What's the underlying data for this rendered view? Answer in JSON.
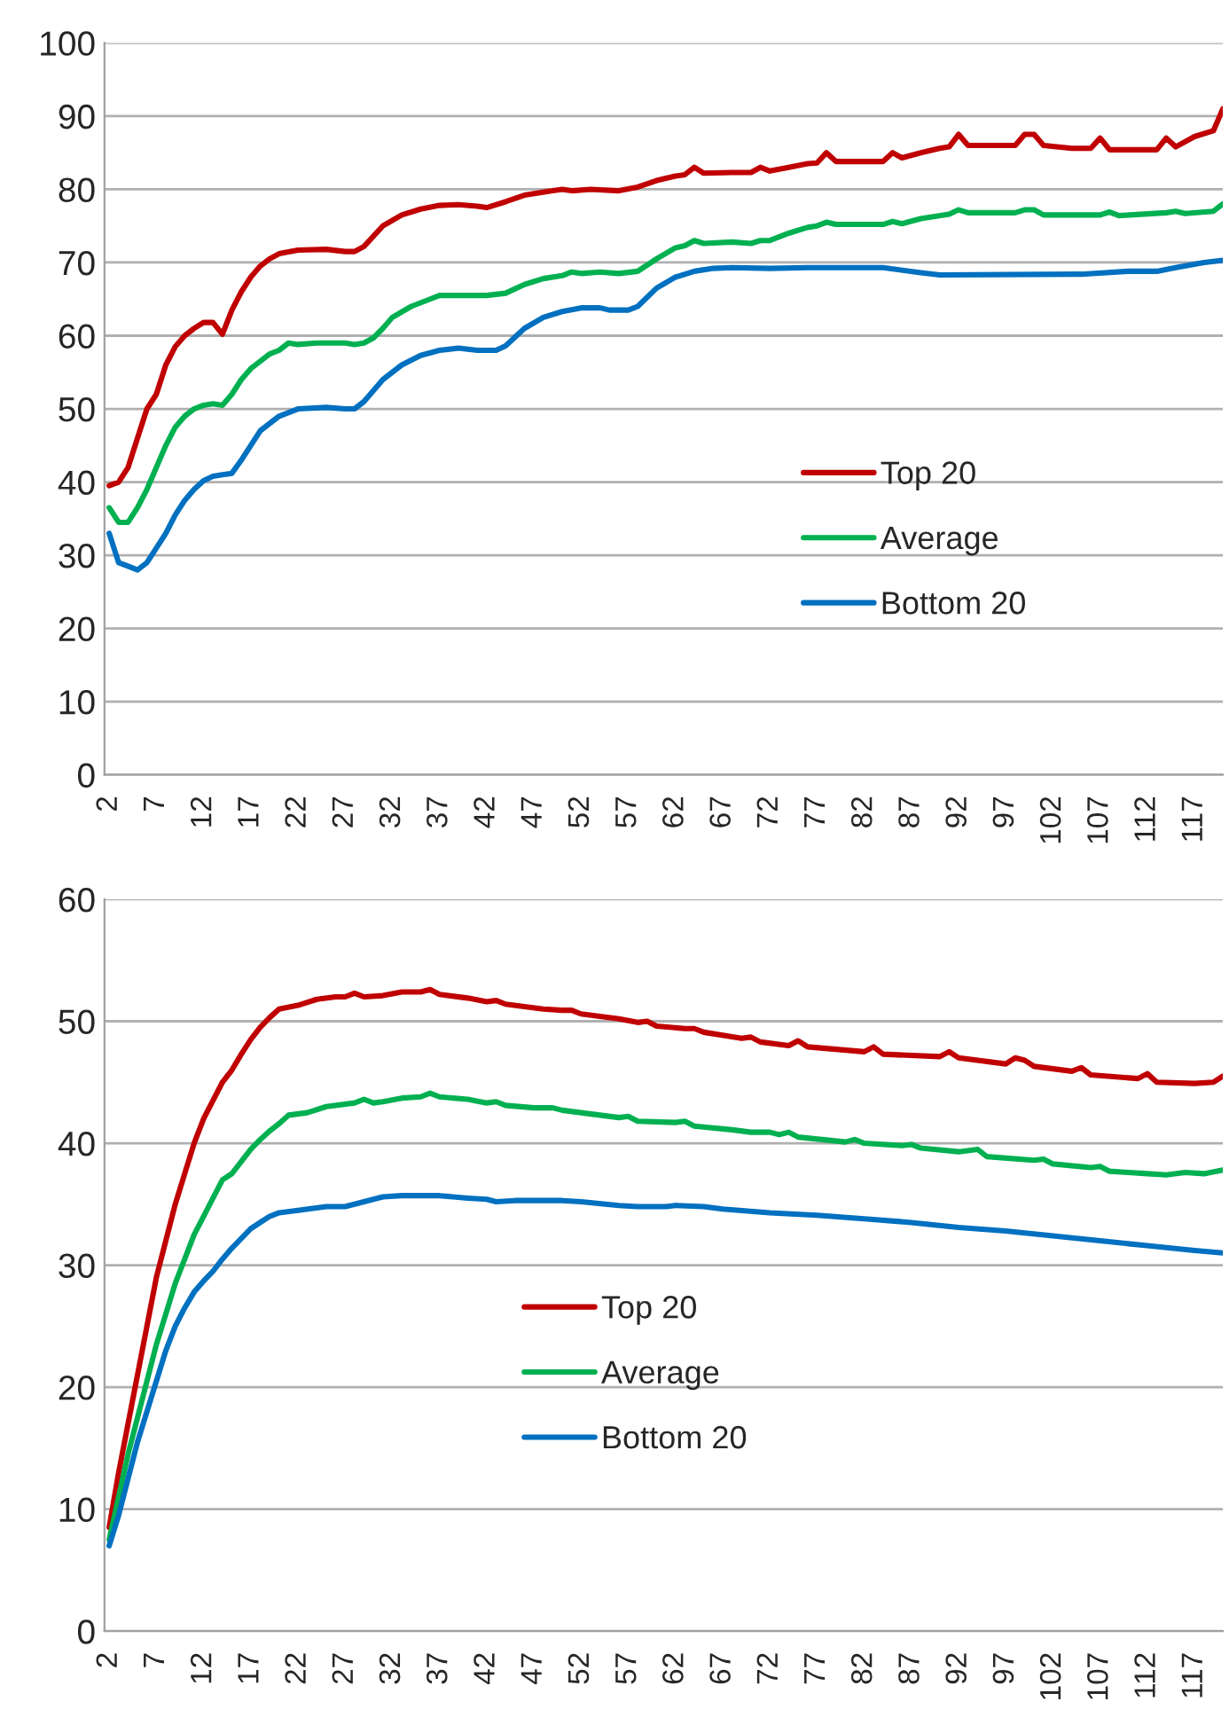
{
  "chart_data": [
    {
      "type": "line",
      "xlim": [
        1.5,
        120
      ],
      "xticks": [
        2,
        7,
        12,
        17,
        22,
        27,
        32,
        37,
        42,
        47,
        52,
        57,
        62,
        67,
        72,
        77,
        82,
        87,
        92,
        97,
        102,
        107,
        112,
        117
      ],
      "ylim": [
        0,
        100
      ],
      "yticks": [
        0,
        10,
        20,
        30,
        40,
        50,
        60,
        70,
        80,
        90,
        100
      ],
      "grid": "y",
      "legend": "right",
      "marker": "none",
      "line_style": "solid",
      "series": [
        {
          "name": "Top 20",
          "color": "#c00000",
          "x": [
            2,
            3,
            4,
            5,
            6,
            7,
            8,
            9,
            10,
            11,
            12,
            13,
            14,
            15,
            16,
            17,
            18,
            19,
            20,
            22,
            25,
            27,
            28,
            29,
            31,
            33,
            35,
            37,
            39,
            41,
            42,
            44,
            46,
            49,
            50,
            51,
            53,
            56,
            58,
            60,
            62,
            63,
            64,
            65,
            68,
            70,
            71,
            72,
            74,
            76,
            77,
            78,
            79,
            84,
            85,
            86,
            88,
            90,
            91,
            92,
            93,
            98,
            99,
            100,
            101,
            104,
            106,
            107,
            108,
            113,
            114,
            115,
            117,
            119,
            120
          ],
          "values": [
            39.5,
            40,
            42,
            46,
            50,
            52,
            56,
            58.5,
            60,
            61,
            61.8,
            61.8,
            60.2,
            63.5,
            66,
            68,
            69.5,
            70.5,
            71.2,
            71.7,
            71.8,
            71.5,
            71.5,
            72.2,
            75,
            76.5,
            77.3,
            77.8,
            77.9,
            77.7,
            77.5,
            78.3,
            79.2,
            79.8,
            80,
            79.8,
            80,
            79.8,
            80.3,
            81.2,
            81.8,
            82,
            83,
            82.2,
            82.3,
            82.3,
            83,
            82.5,
            83,
            83.5,
            83.6,
            85,
            83.8,
            83.8,
            85,
            84.3,
            85,
            85.6,
            85.8,
            87.5,
            86,
            86,
            87.5,
            87.5,
            86,
            85.6,
            85.6,
            87,
            85.4,
            85.4,
            87,
            85.8,
            87.2,
            88,
            91
          ]
        },
        {
          "name": "Average",
          "color": "#00b050",
          "x": [
            2,
            3,
            4,
            5,
            6,
            7,
            8,
            9,
            10,
            11,
            12,
            13,
            14,
            15,
            16,
            17,
            18,
            19,
            20,
            21,
            22,
            24,
            27,
            28,
            29,
            30,
            31,
            32,
            34,
            36,
            37,
            42,
            44,
            46,
            48,
            50,
            51,
            52,
            54,
            56,
            58,
            60,
            62,
            63,
            64,
            65,
            68,
            70,
            71,
            72,
            74,
            76,
            77,
            78,
            79,
            84,
            85,
            86,
            88,
            91,
            92,
            93,
            98,
            99,
            100,
            101,
            107,
            108,
            109,
            114,
            115,
            116,
            119,
            120
          ],
          "values": [
            36.5,
            34.5,
            34.5,
            36.5,
            39,
            42,
            45,
            47.5,
            49,
            50,
            50.5,
            50.7,
            50.5,
            52,
            54,
            55.5,
            56.5,
            57.5,
            58,
            59,
            58.8,
            59,
            59,
            58.8,
            59,
            59.7,
            61,
            62.5,
            64,
            65,
            65.5,
            65.5,
            65.8,
            67,
            67.8,
            68.2,
            68.7,
            68.5,
            68.7,
            68.5,
            68.8,
            70.5,
            72,
            72.3,
            73,
            72.6,
            72.8,
            72.6,
            73,
            73,
            74,
            74.8,
            75,
            75.5,
            75.2,
            75.2,
            75.6,
            75.3,
            76,
            76.6,
            77.2,
            76.8,
            76.8,
            77.2,
            77.2,
            76.5,
            76.5,
            76.9,
            76.4,
            76.8,
            77,
            76.7,
            77,
            78
          ]
        },
        {
          "name": "Bottom 20",
          "color": "#0070c0",
          "x": [
            2,
            3,
            4,
            5,
            6,
            7,
            8,
            9,
            10,
            11,
            12,
            13,
            14,
            15,
            16,
            17,
            18,
            19,
            20,
            22,
            25,
            27,
            28,
            29,
            31,
            33,
            35,
            37,
            39,
            41,
            43,
            44,
            46,
            48,
            50,
            52,
            54,
            55,
            57,
            58,
            60,
            62,
            64,
            66,
            68,
            72,
            76,
            84,
            88,
            90,
            105,
            110,
            113,
            115,
            118,
            120
          ],
          "values": [
            33,
            29,
            28.5,
            28,
            29,
            31,
            33,
            35.5,
            37.5,
            39,
            40.2,
            40.8,
            41,
            41.2,
            43,
            45,
            47,
            48,
            49,
            50,
            50.2,
            50,
            50,
            51,
            54,
            56,
            57.3,
            58,
            58.3,
            58,
            58,
            58.6,
            61,
            62.5,
            63.3,
            63.8,
            63.8,
            63.5,
            63.5,
            64,
            66.5,
            68,
            68.8,
            69.2,
            69.3,
            69.2,
            69.3,
            69.3,
            68.6,
            68.3,
            68.4,
            68.8,
            68.8,
            69.3,
            70,
            70.3
          ]
        }
      ]
    },
    {
      "type": "line",
      "xlim": [
        1.5,
        120
      ],
      "xticks": [
        2,
        7,
        12,
        17,
        22,
        27,
        32,
        37,
        42,
        47,
        52,
        57,
        62,
        67,
        72,
        77,
        82,
        87,
        92,
        97,
        102,
        107,
        112,
        117
      ],
      "ylim": [
        0,
        60
      ],
      "yticks": [
        0,
        10,
        20,
        30,
        40,
        50,
        60
      ],
      "grid": "y",
      "legend": "center",
      "marker": "none",
      "line_style": "solid",
      "series": [
        {
          "name": "Top 20",
          "color": "#c00000",
          "x": [
            2,
            3,
            4,
            5,
            6,
            7,
            8,
            9,
            10,
            11,
            12,
            13,
            14,
            15,
            16,
            17,
            18,
            19,
            20,
            22,
            24,
            26,
            27,
            28,
            29,
            31,
            33,
            35,
            36,
            37,
            40,
            42,
            43,
            44,
            48,
            50,
            51,
            52,
            56,
            58,
            59,
            60,
            63,
            64,
            65,
            69,
            70,
            71,
            74,
            75,
            76,
            82,
            83,
            84,
            90,
            91,
            92,
            97,
            98,
            99,
            100,
            104,
            105,
            106,
            111,
            112,
            113,
            117,
            119,
            120
          ],
          "values": [
            8.5,
            13,
            17,
            21,
            25,
            29,
            32,
            35,
            37.5,
            40,
            42,
            43.5,
            45,
            46,
            47.3,
            48.5,
            49.5,
            50.3,
            51,
            51.3,
            51.8,
            52,
            52,
            52.3,
            52,
            52.1,
            52.4,
            52.4,
            52.6,
            52.2,
            51.9,
            51.6,
            51.7,
            51.4,
            51,
            50.9,
            50.9,
            50.6,
            50.2,
            49.9,
            50,
            49.6,
            49.4,
            49.4,
            49.1,
            48.6,
            48.7,
            48.3,
            48,
            48.4,
            47.9,
            47.5,
            47.9,
            47.3,
            47.1,
            47.5,
            47,
            46.5,
            47,
            46.8,
            46.3,
            45.9,
            46.2,
            45.6,
            45.3,
            45.7,
            45,
            44.9,
            45,
            45.5
          ]
        },
        {
          "name": "Average",
          "color": "#00b050",
          "x": [
            2,
            3,
            4,
            5,
            6,
            7,
            8,
            9,
            10,
            11,
            12,
            13,
            14,
            15,
            16,
            17,
            18,
            19,
            20,
            21,
            23,
            25,
            28,
            29,
            30,
            31,
            33,
            35,
            36,
            37,
            40,
            42,
            43,
            44,
            47,
            49,
            50,
            54,
            56,
            57,
            58,
            62,
            63,
            64,
            68,
            70,
            72,
            73,
            74,
            75,
            80,
            81,
            82,
            86,
            87,
            88,
            92,
            94,
            95,
            100,
            101,
            102,
            106,
            107,
            108,
            110,
            112,
            114,
            116,
            118,
            120
          ],
          "values": [
            7.5,
            11,
            14.5,
            17.5,
            20.5,
            23.5,
            26,
            28.5,
            30.5,
            32.5,
            34,
            35.5,
            37,
            37.5,
            38.5,
            39.5,
            40.3,
            41,
            41.6,
            42.3,
            42.5,
            43,
            43.3,
            43.6,
            43.3,
            43.4,
            43.7,
            43.8,
            44.1,
            43.8,
            43.6,
            43.3,
            43.4,
            43.1,
            42.9,
            42.9,
            42.7,
            42.3,
            42.1,
            42.2,
            41.8,
            41.7,
            41.8,
            41.4,
            41.1,
            40.9,
            40.9,
            40.7,
            40.9,
            40.5,
            40.1,
            40.3,
            40,
            39.8,
            39.9,
            39.6,
            39.3,
            39.5,
            38.9,
            38.6,
            38.7,
            38.3,
            38,
            38.1,
            37.7,
            37.6,
            37.5,
            37.4,
            37.6,
            37.5,
            37.8
          ]
        },
        {
          "name": "Bottom 20",
          "color": "#0070c0",
          "x": [
            2,
            3,
            4,
            5,
            6,
            7,
            8,
            9,
            10,
            11,
            12,
            13,
            14,
            15,
            16,
            17,
            18,
            19,
            20,
            22,
            25,
            27,
            29,
            31,
            33,
            37,
            40,
            42,
            43,
            45,
            50,
            52,
            56,
            58,
            61,
            62,
            65,
            67,
            72,
            77,
            82,
            87,
            92,
            97,
            102,
            107,
            112,
            117,
            120
          ],
          "values": [
            7,
            9.5,
            12.5,
            15.5,
            18,
            20.5,
            23,
            25,
            26.5,
            27.8,
            28.7,
            29.5,
            30.5,
            31.4,
            32.2,
            33,
            33.5,
            34,
            34.3,
            34.5,
            34.8,
            34.8,
            35.2,
            35.6,
            35.7,
            35.7,
            35.5,
            35.4,
            35.2,
            35.3,
            35.3,
            35.2,
            34.9,
            34.8,
            34.8,
            34.9,
            34.8,
            34.6,
            34.3,
            34.1,
            33.8,
            33.5,
            33.1,
            32.8,
            32.4,
            32,
            31.6,
            31.2,
            31
          ]
        }
      ]
    }
  ]
}
